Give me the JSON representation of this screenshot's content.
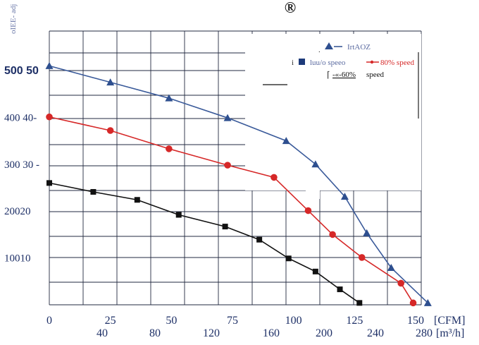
{
  "header": {
    "registered_mark": "®",
    "y_axis_title": "oIEE- adj"
  },
  "colors": {
    "full_speed": "#3a5a9a",
    "speed_80": "#d62828",
    "speed_60": "#111111",
    "grid": "#222a40",
    "x_cfm_text": "#1d2f66",
    "y_text": "#1d2f66"
  },
  "legend": {
    "line1_text": "IrtAOZ",
    "line2_prefix": "i",
    "line2_text": "luu/o speeo",
    "line2_red_text": "80% speed",
    "line3_text": "-«-60%",
    "line3_suffix": "speed"
  },
  "chart_data": {
    "type": "line",
    "title": "",
    "xlabel": "[CFM]",
    "x2label": "[m³/h]",
    "xlim": [
      0,
      150
    ],
    "ylim": [
      0,
      500
    ],
    "grid": true,
    "legend_position": "top-right",
    "x_ticks_cfm": [
      "0",
      "25",
      "50",
      "75",
      "100",
      "125",
      "150"
    ],
    "x_tick_values_cfm": [
      0,
      25,
      50,
      75,
      100,
      125,
      150
    ],
    "x_ticks_m3h": [
      "40",
      "80",
      "120",
      "160",
      "200",
      "240",
      "280"
    ],
    "y_tick_labels": [
      "500 50",
      "400 40-",
      "300 30 -",
      "20020",
      "10010"
    ],
    "y_tick_values": [
      500,
      400,
      300,
      200,
      100
    ],
    "series": [
      {
        "name": "IrtAOZ",
        "marker": "triangle",
        "x": [
          0,
          25,
          49,
          73,
          97,
          109,
          121,
          130,
          140,
          155
        ],
        "y": [
          510,
          475,
          441,
          399,
          350,
          300,
          231,
          153,
          79,
          4
        ]
      },
      {
        "name": "80% speed",
        "marker": "circle",
        "x": [
          0,
          25,
          49,
          73,
          92,
          106,
          116,
          128,
          144,
          149
        ],
        "y": [
          401,
          372,
          333,
          298,
          272,
          201,
          150,
          101,
          46,
          4
        ]
      },
      {
        "name": "60% speed",
        "marker": "square",
        "x": [
          0,
          18,
          36,
          53,
          72,
          86,
          98,
          109,
          119,
          127
        ],
        "y": [
          260,
          241,
          224,
          192,
          167,
          139,
          99,
          71,
          33,
          4
        ]
      }
    ]
  }
}
